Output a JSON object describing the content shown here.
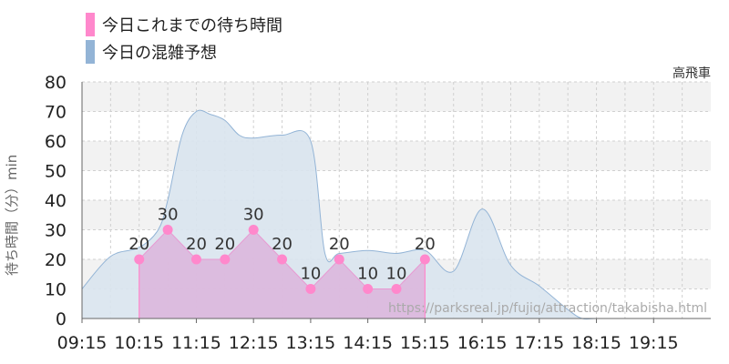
{
  "legend": {
    "actual_label": "今日これまでの待ち時間",
    "forecast_label": "今日の混雑予想"
  },
  "subtitle": "高飛車",
  "watermark": "https://parksreal.jp/fujiq/attraction/takabisha.html",
  "colors": {
    "actual": "#ff88cc",
    "actual_fill": "#dcb4dc",
    "forecast": "#93b4d6",
    "forecast_fill": "#d9e4ee",
    "band": "#f2f2f2"
  },
  "chart_data": {
    "type": "area",
    "ylabel": "待ち時間（分）min",
    "ylim": [
      0,
      80
    ],
    "yticks": [
      0,
      10,
      20,
      30,
      40,
      50,
      60,
      70,
      80
    ],
    "xlim": [
      "09:15",
      "20:15"
    ],
    "xticks": [
      "09:15",
      "10:15",
      "11:15",
      "12:15",
      "13:15",
      "14:15",
      "15:15",
      "16:15",
      "17:15",
      "18:15",
      "19:15"
    ],
    "grid": true,
    "legend_position": "top-left",
    "series": [
      {
        "name": "今日の混雑予想",
        "kind": "area",
        "x": [
          "09:15",
          "09:45",
          "10:15",
          "10:35",
          "10:45",
          "11:00",
          "11:15",
          "11:30",
          "11:45",
          "12:00",
          "12:15",
          "12:45",
          "13:15",
          "13:30",
          "13:45",
          "14:15",
          "14:45",
          "15:15",
          "15:45",
          "16:15",
          "16:45",
          "17:15",
          "17:45",
          "18:00",
          "18:15",
          "18:45",
          "19:15",
          "19:45",
          "20:15"
        ],
        "values": [
          10,
          21,
          24,
          30,
          40,
          62,
          70,
          69,
          67,
          62,
          61,
          62,
          60,
          22,
          22,
          23,
          22,
          23,
          16,
          37,
          18,
          11,
          3,
          0,
          0,
          0,
          0,
          0,
          0
        ]
      },
      {
        "name": "今日これまでの待ち時間",
        "kind": "area-markers",
        "x": [
          "10:15",
          "10:45",
          "11:15",
          "11:45",
          "12:15",
          "12:45",
          "13:15",
          "13:45",
          "14:15",
          "14:45",
          "15:15"
        ],
        "values": [
          20,
          30,
          20,
          20,
          30,
          20,
          10,
          20,
          10,
          10,
          20
        ],
        "labels": [
          "20",
          "30",
          "20",
          "20",
          "30",
          "20",
          "10",
          "20",
          "10",
          "10",
          "20"
        ]
      }
    ]
  }
}
